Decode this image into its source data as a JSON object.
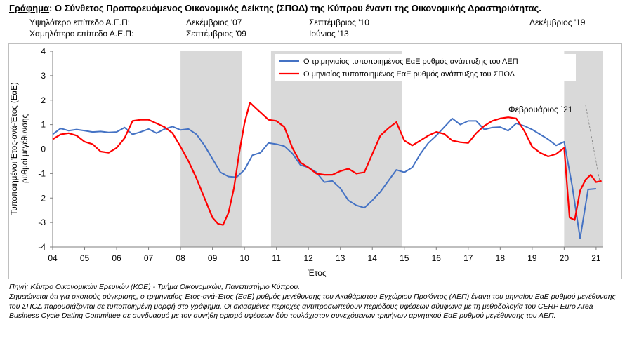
{
  "header": {
    "title_lead": "Γράφημα",
    "title_rest": ": Ο Σύνθετος Προπορευόμενος Οικονομικός Δείκτης (ΣΠΟΔ) της Κύπρου έναντι της Οικονομικής  Δραστηριότητας.",
    "high_label": "Υψηλότερο επίπεδο Α.Ε.Π:",
    "low_label": "Χαμηλότερο επίπεδο Α.Ε.Π:",
    "high_1": "Δεκέμβριος '07",
    "high_2": "Σεπτέμβριος '10",
    "high_3": "Δεκέμβριος '19",
    "low_1": "Σεπτέμβριος '09",
    "low_2": "Ιούνιος '13"
  },
  "chart_data": {
    "type": "line",
    "xlabel": "Έτος",
    "ylabel": "Τυποποιημένοι Έτος-ανά-Έτος (ΕαΕ) ρυθμοί μεγέθυνσης",
    "ylim": [
      -4,
      4
    ],
    "xlim": [
      2004,
      2021.2
    ],
    "yticks": [
      "4",
      "3",
      "2",
      "1",
      "0",
      "-1",
      "-2",
      "-3",
      "-4"
    ],
    "xticks": [
      "04",
      "05",
      "06",
      "07",
      "08",
      "09",
      "10",
      "11",
      "12",
      "13",
      "14",
      "15",
      "16",
      "17",
      "18",
      "19",
      "20",
      "21"
    ],
    "grid": false,
    "legend_position": "top-center",
    "shaded_periods": [
      [
        2008.0,
        2009.92
      ],
      [
        2010.83,
        2014.92
      ],
      [
        2020.0,
        2021.2
      ]
    ],
    "annotation": "Φεβρουάριος ΄21",
    "series": [
      {
        "name": "Ο τριμηνιαίος τυποποιημένος ΕαΕ ρυθμός ανάπτυξης του ΑΕΠ",
        "color": "#4472c4",
        "x": [
          2004.0,
          2004.25,
          2004.5,
          2004.75,
          2005.0,
          2005.25,
          2005.5,
          2005.75,
          2006.0,
          2006.25,
          2006.5,
          2006.75,
          2007.0,
          2007.25,
          2007.5,
          2007.75,
          2008.0,
          2008.25,
          2008.5,
          2008.75,
          2009.0,
          2009.25,
          2009.5,
          2009.75,
          2010.0,
          2010.25,
          2010.5,
          2010.75,
          2011.0,
          2011.25,
          2011.5,
          2011.75,
          2012.0,
          2012.25,
          2012.5,
          2012.75,
          2013.0,
          2013.25,
          2013.5,
          2013.75,
          2014.0,
          2014.25,
          2014.5,
          2014.75,
          2015.0,
          2015.25,
          2015.5,
          2015.75,
          2016.0,
          2016.25,
          2016.5,
          2016.75,
          2017.0,
          2017.25,
          2017.5,
          2017.75,
          2018.0,
          2018.25,
          2018.5,
          2018.75,
          2019.0,
          2019.25,
          2019.5,
          2019.75,
          2020.0,
          2020.25,
          2020.5,
          2020.75,
          2021.0
        ],
        "values": [
          0.6,
          0.85,
          0.75,
          0.8,
          0.75,
          0.7,
          0.72,
          0.68,
          0.7,
          0.88,
          0.6,
          0.7,
          0.82,
          0.65,
          0.82,
          0.92,
          0.78,
          0.82,
          0.6,
          0.15,
          -0.4,
          -0.95,
          -1.12,
          -1.15,
          -0.85,
          -0.25,
          -0.15,
          0.25,
          0.2,
          0.12,
          -0.18,
          -0.65,
          -0.75,
          -0.95,
          -1.35,
          -1.3,
          -1.6,
          -2.1,
          -2.3,
          -2.4,
          -2.1,
          -1.75,
          -1.3,
          -0.85,
          -0.95,
          -0.75,
          -0.2,
          0.25,
          0.55,
          0.9,
          1.25,
          1.0,
          1.15,
          1.15,
          0.8,
          0.88,
          0.9,
          0.75,
          1.05,
          0.95,
          0.8,
          0.6,
          0.4,
          0.15,
          0.3,
          -1.5,
          -3.65,
          -1.65,
          -1.62
        ]
      },
      {
        "name": "Ο μηνιαίος τυποποιημένος ΕαΕ ρυθμός ανάπτυξης του ΣΠΟΔ",
        "color": "#ff0000",
        "x": [
          2004.0,
          2004.25,
          2004.5,
          2004.75,
          2005.0,
          2005.25,
          2005.5,
          2005.75,
          2006.0,
          2006.25,
          2006.5,
          2006.75,
          2007.0,
          2007.25,
          2007.5,
          2007.75,
          2008.0,
          2008.25,
          2008.5,
          2008.75,
          2009.0,
          2009.17,
          2009.33,
          2009.5,
          2009.67,
          2009.83,
          2010.0,
          2010.17,
          2010.33,
          2010.5,
          2010.75,
          2011.0,
          2011.25,
          2011.5,
          2011.75,
          2012.0,
          2012.25,
          2012.5,
          2012.75,
          2013.0,
          2013.25,
          2013.5,
          2013.75,
          2014.0,
          2014.25,
          2014.5,
          2014.75,
          2015.0,
          2015.25,
          2015.5,
          2015.75,
          2016.0,
          2016.25,
          2016.5,
          2016.75,
          2017.0,
          2017.25,
          2017.5,
          2017.75,
          2018.0,
          2018.25,
          2018.5,
          2018.75,
          2019.0,
          2019.25,
          2019.5,
          2019.75,
          2020.0,
          2020.17,
          2020.33,
          2020.5,
          2020.67,
          2020.83,
          2021.0,
          2021.17
        ],
        "values": [
          0.4,
          0.6,
          0.65,
          0.55,
          0.3,
          0.2,
          -0.1,
          -0.15,
          0.05,
          0.45,
          1.15,
          1.2,
          1.2,
          1.05,
          0.9,
          0.65,
          0.1,
          -0.5,
          -1.2,
          -2.0,
          -2.8,
          -3.05,
          -3.1,
          -2.6,
          -1.6,
          -0.2,
          1.05,
          1.9,
          1.7,
          1.5,
          1.2,
          1.15,
          0.9,
          0.05,
          -0.55,
          -0.75,
          -1.0,
          -1.05,
          -1.05,
          -0.9,
          -0.8,
          -1.0,
          -0.95,
          -0.2,
          0.55,
          0.85,
          1.1,
          0.35,
          0.15,
          0.35,
          0.55,
          0.7,
          0.62,
          0.35,
          0.28,
          0.25,
          0.65,
          0.95,
          1.15,
          1.25,
          1.3,
          1.25,
          0.75,
          0.1,
          -0.15,
          -0.3,
          -0.2,
          0.05,
          -2.8,
          -2.9,
          -1.7,
          -1.25,
          -1.05,
          -1.35,
          -1.3
        ]
      }
    ]
  },
  "footer": {
    "source": "Πηγή: Κέντρο Οικονομικών Ερευνών (ΚΟΕ) - Τμήμα Οικονομικών, Πανεπιστήμιο Κύπρου.",
    "note_1": "Σημειώνεται ότι για σκοπούς σύγκρισης, ο τριμηνιαίος Έτος-ανά-Έτος (ΕαΕ) ρυθμός μεγέθυνσης του Ακαθάριστου Εγχώριου Προϊόντος (ΑΕΠ) έναντι του μηνιαίου ΕαΕ ρυθμού μεγέθυνσης του ΣΠΟΔ παρουσιάζονται σε τυποποιημένη μορφή στο γράφημα. Οι σκιασμένες περιοχές αντιπροσωπεύουν περιόδους υφέσεων σύμφωνα με τη μεθοδολογία του CERP Euro Area Business Cycle Dating Committee σε συνδυασμό με τον συνήθη ορισμό υφέσεων δύο τουλάχιστον συνεχόμενων τριμήνων αρνητικού ΕαΕ ρυθμού μεγέθυνσης του ΑΕΠ."
  }
}
